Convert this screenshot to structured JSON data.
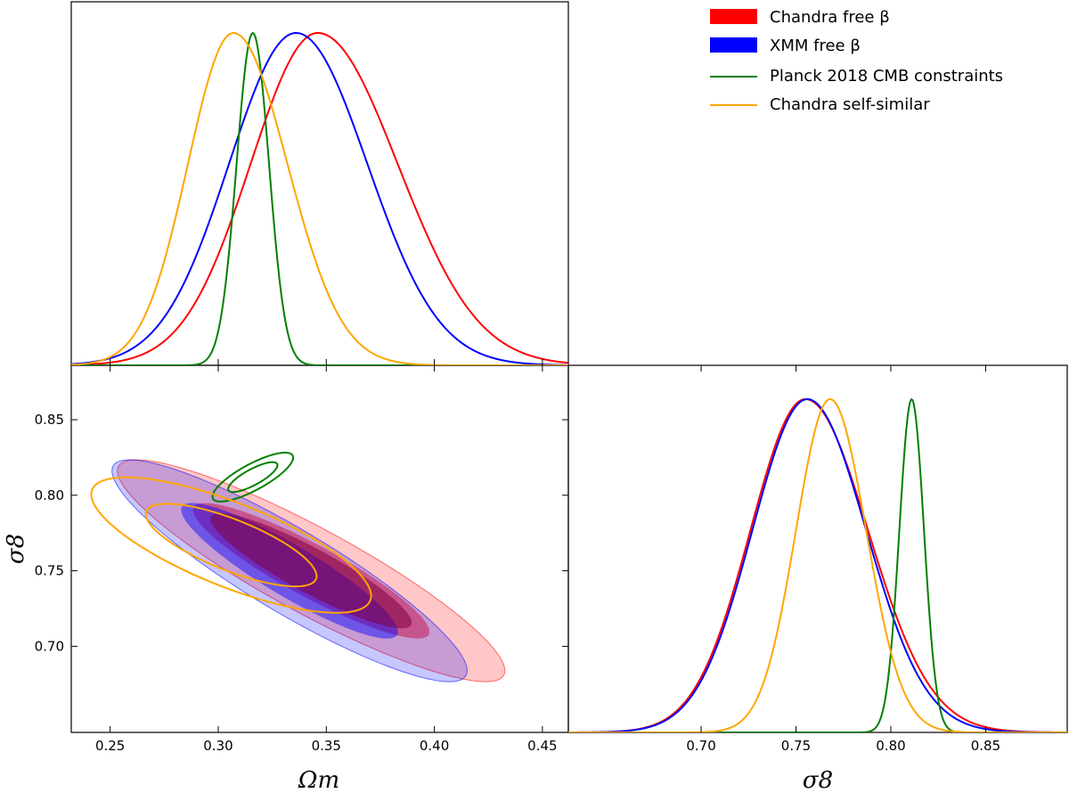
{
  "chart_data": {
    "type": "corner-plot",
    "legend": {
      "placement": "top-right",
      "entries": [
        {
          "label": "Chandra free β",
          "color": "#ff0000",
          "style": "filled"
        },
        {
          "label": "XMM free β",
          "color": "#0000ff",
          "style": "filled"
        },
        {
          "label": "Planck 2018 CMB constraints",
          "color": "#008000",
          "style": "line"
        },
        {
          "label": "Chandra self-similar",
          "color": "#ffa500",
          "style": "line"
        }
      ]
    },
    "axes": {
      "omega_m": {
        "label": "Ωm",
        "range": [
          0.232,
          0.462
        ],
        "ticks": [
          0.25,
          0.3,
          0.35,
          0.4,
          0.45
        ],
        "tick_labels": [
          "0.25",
          "0.30",
          "0.35",
          "0.40",
          "0.45"
        ]
      },
      "sigma_8_y": {
        "label": "σ8",
        "range": [
          0.643,
          0.886
        ],
        "ticks": [
          0.7,
          0.75,
          0.8,
          0.85
        ],
        "tick_labels": [
          "0.70",
          "0.75",
          "0.80",
          "0.85"
        ]
      },
      "sigma_8_x": {
        "label": "σ8",
        "range": [
          0.63,
          0.893
        ],
        "ticks": [
          0.7,
          0.75,
          0.8,
          0.85
        ],
        "tick_labels": [
          "0.70",
          "0.75",
          "0.80",
          "0.85"
        ]
      }
    },
    "omega_m_marginals": [
      {
        "name": "Chandra free β",
        "color": "#ff0000",
        "peak": 0.346,
        "sigma_left": 0.031,
        "sigma_right": 0.037
      },
      {
        "name": "XMM free β",
        "color": "#0000ff",
        "peak": 0.336,
        "sigma_left": 0.031,
        "sigma_right": 0.033
      },
      {
        "name": "Planck 2018 CMB constraints",
        "color": "#008000",
        "peak": 0.316,
        "sigma_left": 0.0075,
        "sigma_right": 0.0075
      },
      {
        "name": "Chandra self-similar",
        "color": "#ffa500",
        "peak": 0.307,
        "sigma_left": 0.021,
        "sigma_right": 0.025
      }
    ],
    "sigma_8_marginals": [
      {
        "name": "Chandra free β",
        "color": "#ff0000",
        "peak": 0.755,
        "sigma_left": 0.029,
        "sigma_right": 0.033
      },
      {
        "name": "XMM free β",
        "color": "#0000ff",
        "peak": 0.756,
        "sigma_left": 0.029,
        "sigma_right": 0.031
      },
      {
        "name": "Planck 2018 CMB constraints",
        "color": "#008000",
        "peak": 0.811,
        "sigma_left": 0.0065,
        "sigma_right": 0.0065
      },
      {
        "name": "Chandra self-similar",
        "color": "#ffa500",
        "peak": 0.768,
        "sigma_left": 0.018,
        "sigma_right": 0.019
      }
    ],
    "contours_2d": [
      {
        "name": "Chandra free β",
        "color": "#ff0000",
        "style": "filled",
        "center": [
          0.343,
          0.75
        ],
        "sigma": [
          0.036,
          0.0295
        ],
        "corr": -0.9
      },
      {
        "name": "XMM free β",
        "color": "#0000ff",
        "style": "filled",
        "center": [
          0.333,
          0.75
        ],
        "sigma": [
          0.033,
          0.0295
        ],
        "corr": -0.9
      },
      {
        "name": "Planck 2018 CMB constraints",
        "color": "#008000",
        "style": "line",
        "center": [
          0.316,
          0.812
        ],
        "sigma": [
          0.0075,
          0.0065
        ],
        "corr": 0.8
      },
      {
        "name": "Chandra self-similar",
        "color": "#ffa500",
        "style": "line",
        "center": [
          0.306,
          0.767
        ],
        "sigma": [
          0.026,
          0.018
        ],
        "corr": -0.75
      }
    ],
    "levels_sigma": [
      1.52,
      2.49
    ],
    "grid": false
  }
}
